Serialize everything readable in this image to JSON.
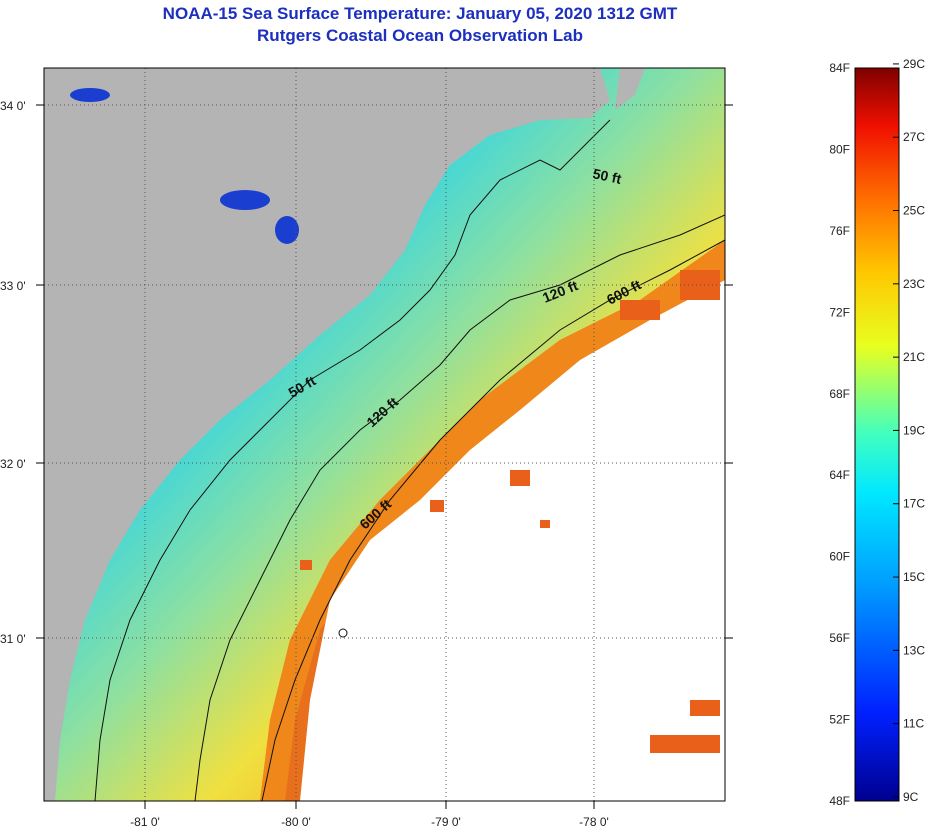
{
  "header": {
    "title": "NOAA-15 Sea Surface Temperature:  January 05, 2020 1312 GMT",
    "subtitle": "Rutgers Coastal Ocean Observation Lab"
  },
  "map": {
    "lat_labels": [
      "34 0'",
      "33 0'",
      "32 0'",
      "31 0'"
    ],
    "lon_labels": [
      "-81 0'",
      "-80 0'",
      "-79 0'",
      "-78 0'"
    ],
    "depth_contours": [
      "50 ft",
      "50 ft",
      "120 ft",
      "120 ft",
      "600 ft",
      "600 ft"
    ]
  },
  "colorbar": {
    "fahrenheit_labels": [
      "84F",
      "80F",
      "76F",
      "72F",
      "68F",
      "64F",
      "60F",
      "56F",
      "52F",
      "48F"
    ],
    "celsius_labels": [
      "29C",
      "27C",
      "25C",
      "23C",
      "21C",
      "19C",
      "17C",
      "15C",
      "13C",
      "11C",
      "9C"
    ]
  },
  "colors": {
    "land": "#b4b4b4",
    "cloud": "#ffffff",
    "title": "#1c2fbf"
  }
}
